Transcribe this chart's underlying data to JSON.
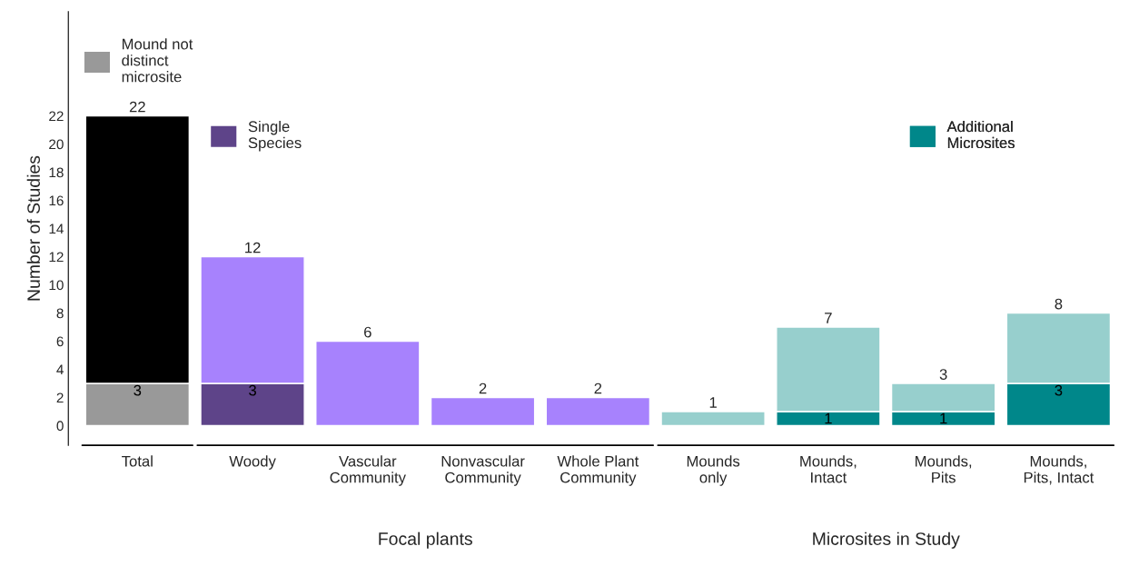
{
  "chart_data": {
    "type": "bar",
    "ylabel": "Number of Studies",
    "stacked": true,
    "categories": [
      "Total",
      "Woody",
      "Vascular\nCommunity",
      "Nonvascular\nCommunity",
      "Whole Plant\nCommunity",
      "Mounds\nonly",
      "Mounds,\nIntact",
      "Mounds,\nPits",
      "Mounds,\nPits, Intact"
    ],
    "series": [
      {
        "name": "Mound not\ndistinct\nmicrosite",
        "color": "#999999",
        "values": [
          3,
          null,
          null,
          null,
          null,
          null,
          null,
          null,
          null
        ],
        "value_labels": [
          "3",
          null,
          null,
          null,
          null,
          null,
          null,
          null,
          null
        ]
      },
      {
        "name": "Single\nSpecies",
        "color": "#5e4489",
        "values": [
          null,
          3,
          null,
          null,
          null,
          null,
          null,
          null,
          null
        ],
        "value_labels": [
          null,
          "3",
          null,
          null,
          null,
          null,
          null,
          null,
          null
        ]
      },
      {
        "name": "Additional\nMicrosites",
        "color": "#00878a",
        "values": [
          null,
          null,
          null,
          null,
          null,
          null,
          1,
          1,
          3
        ],
        "value_labels": [
          null,
          null,
          null,
          null,
          null,
          null,
          "1",
          "1",
          "3"
        ]
      },
      {
        "colors": [
          "#000000",
          "#a782fd",
          "#a782fd",
          "#a782fd",
          "#a782fd",
          "#97cfcd",
          "#97cfcd",
          "#97cfcd",
          "#97cfcd"
        ],
        "values": [
          19,
          9,
          6,
          2,
          2,
          1,
          6,
          2,
          5
        ]
      }
    ],
    "totals": [
      "22",
      "12",
      "6",
      "2",
      "2",
      "1",
      "7",
      "3",
      "8"
    ],
    "ylim": [
      -1.4,
      29.4
    ],
    "yticks": [
      0,
      2,
      4,
      6,
      8,
      10,
      12,
      14,
      16,
      18,
      20,
      22
    ],
    "grid": false,
    "legend": "top",
    "annotations": [
      "Focal plants",
      "Microsites in Study"
    ]
  }
}
